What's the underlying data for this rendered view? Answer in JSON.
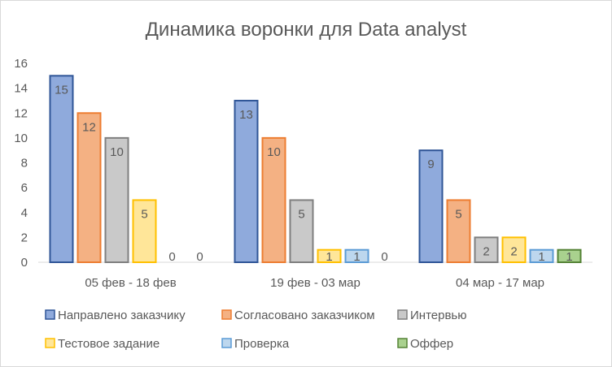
{
  "chart_data": {
    "type": "bar",
    "title": "Динамика воронки для Data analyst",
    "categories": [
      "05 фев - 18 фев",
      "19 фев - 03 мар",
      "04 мар - 17 мар"
    ],
    "ylim": [
      0,
      16
    ],
    "yticks": [
      0,
      2,
      4,
      6,
      8,
      10,
      12,
      14,
      16
    ],
    "grid": false,
    "legend_position": "bottom",
    "series": [
      {
        "name": "Направлено заказчику",
        "values": [
          15,
          13,
          9
        ],
        "fill": "#8faadc",
        "stroke": "#2f5597"
      },
      {
        "name": "Согласовано заказчиком",
        "values": [
          12,
          10,
          5
        ],
        "fill": "#f4b183",
        "stroke": "#ed7d31"
      },
      {
        "name": "Интервью",
        "values": [
          10,
          5,
          2
        ],
        "fill": "#c9c9c9",
        "stroke": "#7f7f7f"
      },
      {
        "name": "Тестовое задание",
        "values": [
          5,
          1,
          2
        ],
        "fill": "#ffe699",
        "stroke": "#ffc000"
      },
      {
        "name": "Проверка",
        "values": [
          0,
          1,
          1
        ],
        "fill": "#bdd7ee",
        "stroke": "#5b9bd5"
      },
      {
        "name": "Оффер",
        "values": [
          0,
          0,
          1
        ],
        "fill": "#a9d18e",
        "stroke": "#548235"
      }
    ]
  }
}
